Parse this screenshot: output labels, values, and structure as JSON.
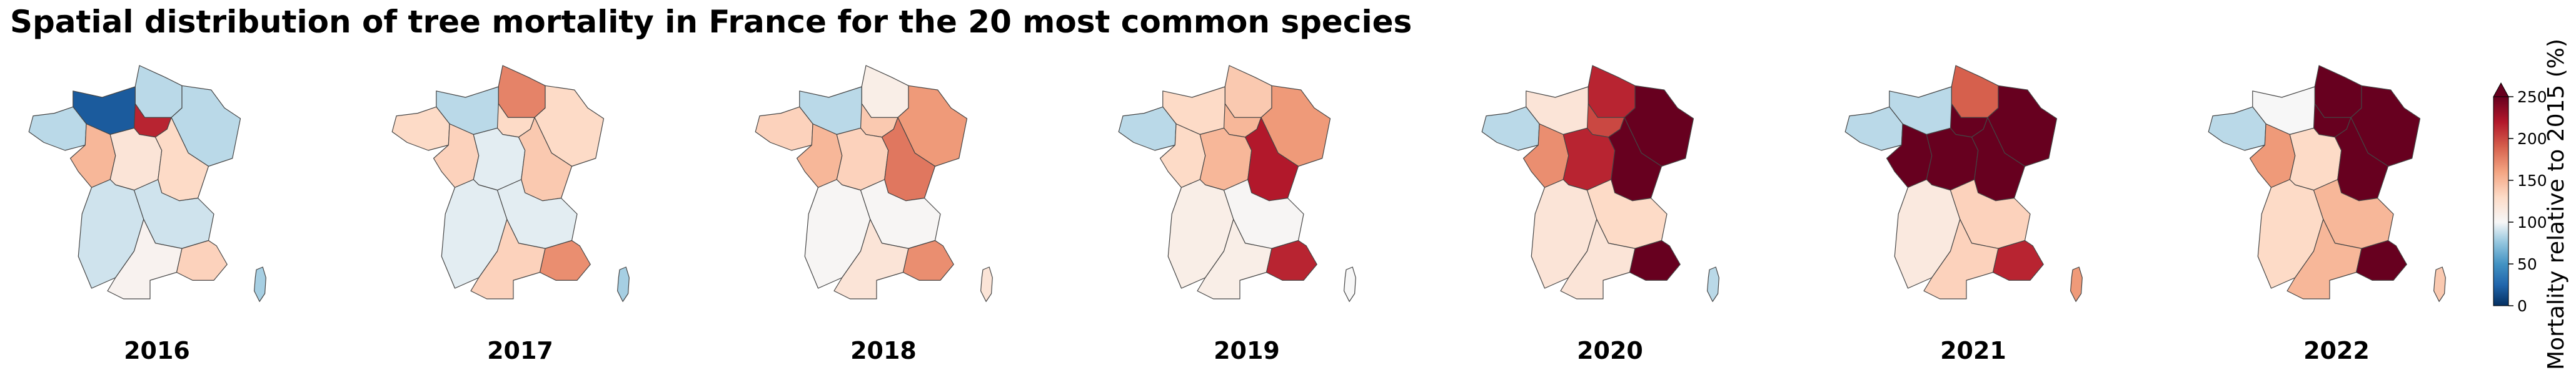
{
  "title": "Spatial distribution of tree mortality in France for the 20 most common species",
  "chart_data": {
    "type": "choropleth",
    "title": "Spatial distribution of tree mortality in France for the 20 most common species",
    "colorbar": {
      "label": "Mortality relative to 2015 (%)",
      "range": [
        0,
        250
      ],
      "ticks": [
        "0",
        "50",
        "100",
        "150",
        "200",
        "250"
      ],
      "tick_values": [
        0,
        50,
        100,
        150,
        200,
        250
      ],
      "extend": "max",
      "colormap": "RdBu_r",
      "center": 100
    },
    "regions": [
      "Hauts-de-France",
      "Normandie",
      "Île-de-France",
      "Grand Est",
      "Bretagne",
      "Pays de la Loire",
      "Centre-Val de Loire",
      "Bourgogne-Franche-Comté",
      "Nouvelle-Aquitaine",
      "Auvergne-Rhône-Alpes",
      "Occitanie",
      "Provence-Alpes-Côte d'Azur",
      "Corse"
    ],
    "panels": [
      {
        "label": "2016",
        "values": {
          "Hauts-de-France": 85,
          "Normandie": 20,
          "Île-de-France": 215,
          "Grand Est": 85,
          "Bretagne": 85,
          "Pays de la Loire": 150,
          "Centre-Val de Loire": 120,
          "Bourgogne-Franche-Comté": 130,
          "Nouvelle-Aquitaine": 90,
          "Auvergne-Rhône-Alpes": 90,
          "Occitanie": 105,
          "Provence-Alpes-Côte d'Azur": 135,
          "Corse": 80
        }
      },
      {
        "label": "2017",
        "values": {
          "Hauts-de-France": 175,
          "Normandie": 85,
          "Île-de-France": 130,
          "Grand Est": 130,
          "Bretagne": 130,
          "Pays de la Loire": 135,
          "Centre-Val de Loire": 95,
          "Bourgogne-Franche-Comté": 140,
          "Nouvelle-Aquitaine": 95,
          "Auvergne-Rhône-Alpes": 95,
          "Occitanie": 135,
          "Provence-Alpes-Côte d'Azur": 170,
          "Corse": 80
        }
      },
      {
        "label": "2018",
        "values": {
          "Hauts-de-France": 110,
          "Normandie": 85,
          "Île-de-France": 140,
          "Grand Est": 165,
          "Bretagne": 135,
          "Pays de la Loire": 150,
          "Centre-Val de Loire": 135,
          "Bourgogne-Franche-Comté": 180,
          "Nouvelle-Aquitaine": 102,
          "Auvergne-Rhône-Alpes": 102,
          "Occitanie": 120,
          "Provence-Alpes-Côte d'Azur": 170,
          "Corse": 120
        }
      },
      {
        "label": "2019",
        "values": {
          "Hauts-de-France": 140,
          "Normandie": 130,
          "Île-de-France": 150,
          "Grand Est": 165,
          "Bretagne": 85,
          "Pays de la Loire": 130,
          "Centre-Val de Loire": 150,
          "Bourgogne-Franche-Comté": 220,
          "Nouvelle-Aquitaine": 110,
          "Auvergne-Rhône-Alpes": 102,
          "Occitanie": 110,
          "Provence-Alpes-Côte d'Azur": 215,
          "Corse": 100
        }
      },
      {
        "label": "2020",
        "values": {
          "Hauts-de-France": 215,
          "Normandie": 120,
          "Île-de-France": 200,
          "Grand Est": 260,
          "Bretagne": 85,
          "Pays de la Loire": 170,
          "Centre-Val de Loire": 215,
          "Bourgogne-Franche-Comté": 260,
          "Nouvelle-Aquitaine": 120,
          "Auvergne-Rhône-Alpes": 130,
          "Occitanie": 120,
          "Provence-Alpes-Côte d'Azur": 260,
          "Corse": 85
        }
      },
      {
        "label": "2021",
        "values": {
          "Hauts-de-France": 190,
          "Normandie": 85,
          "Île-de-France": 250,
          "Grand Est": 260,
          "Bretagne": 85,
          "Pays de la Loire": 250,
          "Centre-Val de Loire": 250,
          "Bourgogne-Franche-Comté": 260,
          "Nouvelle-Aquitaine": 115,
          "Auvergne-Rhône-Alpes": 135,
          "Occitanie": 135,
          "Provence-Alpes-Côte d'Azur": 215,
          "Corse": 165
        }
      },
      {
        "label": "2022",
        "values": {
          "Hauts-de-France": 260,
          "Normandie": 100,
          "Île-de-France": 260,
          "Grand Est": 260,
          "Bretagne": 85,
          "Pays de la Loire": 165,
          "Centre-Val de Loire": 130,
          "Bourgogne-Franche-Comté": 260,
          "Nouvelle-Aquitaine": 130,
          "Auvergne-Rhône-Alpes": 150,
          "Occitanie": 150,
          "Provence-Alpes-Côte d'Azur": 250,
          "Corse": 140
        }
      }
    ]
  }
}
